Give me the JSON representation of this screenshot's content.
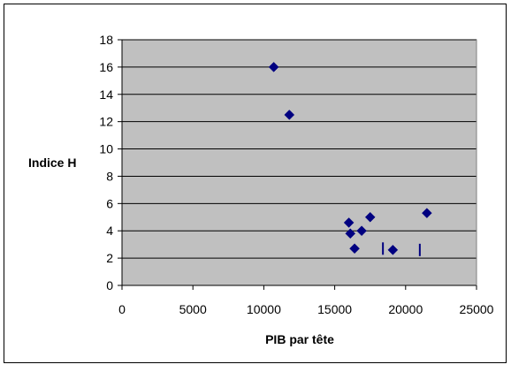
{
  "chart_data": {
    "type": "scatter",
    "title": "",
    "xlabel": "PIB par tête",
    "ylabel": "Indice H",
    "xlim": [
      0,
      25000
    ],
    "ylim": [
      0,
      18
    ],
    "x_ticks": [
      "0",
      "5000",
      "10000",
      "15000",
      "20000",
      "25000"
    ],
    "y_ticks": [
      "0",
      "2",
      "4",
      "6",
      "8",
      "10",
      "12",
      "14",
      "16",
      "18"
    ],
    "grid": "horizontal",
    "legend": "none",
    "colors": {
      "plot_bg": "#c0c0c0",
      "marker": "#000080",
      "gridline": "#000000",
      "frame": "#000000"
    },
    "series": [
      {
        "marker": "diamond",
        "points": [
          {
            "x": 10700,
            "y": 16.0
          },
          {
            "x": 11800,
            "y": 12.5
          },
          {
            "x": 16000,
            "y": 4.6
          },
          {
            "x": 16100,
            "y": 3.8
          },
          {
            "x": 16900,
            "y": 4.0
          },
          {
            "x": 17500,
            "y": 5.0
          },
          {
            "x": 16400,
            "y": 2.7
          },
          {
            "x": 19100,
            "y": 2.6
          },
          {
            "x": 21500,
            "y": 5.3
          }
        ]
      },
      {
        "marker": "bar",
        "points": [
          {
            "x": 18400,
            "y": 2.7
          },
          {
            "x": 21000,
            "y": 2.6
          }
        ]
      }
    ]
  }
}
